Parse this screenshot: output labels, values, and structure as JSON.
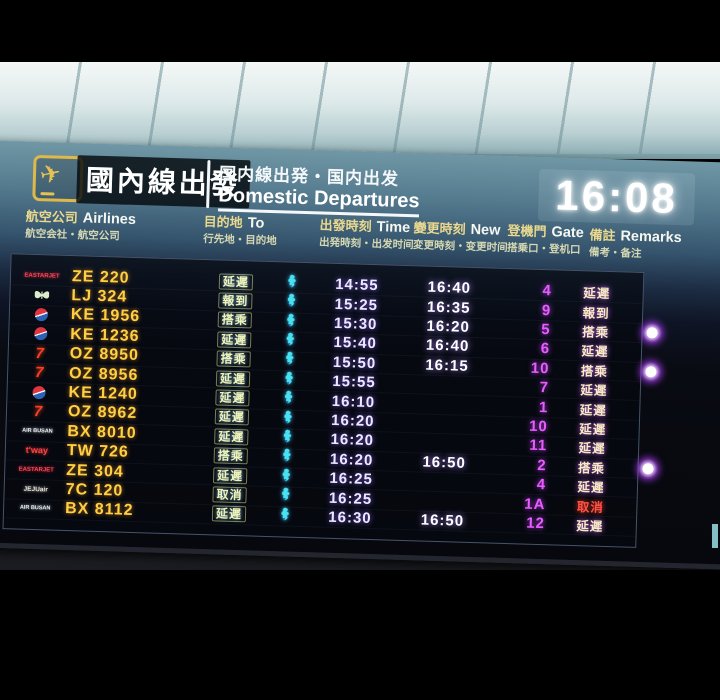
{
  "header": {
    "title_tc": "國內線出發",
    "subtitle_cjk": "国内線出発・国内出发",
    "subtitle_en": "Domestic Departures",
    "clock": "16:08",
    "plane_icon": "departure-plane-icon"
  },
  "columns": [
    {
      "zh": "航空公司",
      "en": "Airlines",
      "sub": "航空会社・航空公司"
    },
    {
      "zh": "目的地",
      "en": "To",
      "sub": "行先地・目的地"
    },
    {
      "zh": "出發時刻",
      "en": "Time",
      "sub": "出発時刻・出发时间"
    },
    {
      "zh": "變更時刻",
      "en": "New",
      "sub": "変更時刻・变更时间"
    },
    {
      "zh": "登機門",
      "en": "Gate",
      "sub": "搭乗口・登机口"
    },
    {
      "zh": "備註",
      "en": "Remarks",
      "sub": "備考・备注"
    }
  ],
  "flights": [
    {
      "logo": "eastar-jet",
      "logo_text": "EASTARJET",
      "flight": "ZE 220",
      "status": "延遲",
      "time": "14:55",
      "new": "16:40",
      "gate": "4",
      "remark": "延遲",
      "boarding_dot": false,
      "cancelled": false
    },
    {
      "logo": "jin-air",
      "logo_text": "",
      "flight": "LJ 324",
      "status": "報到",
      "time": "15:25",
      "new": "16:35",
      "gate": "9",
      "remark": "報到",
      "boarding_dot": false,
      "cancelled": false
    },
    {
      "logo": "korean-air",
      "logo_text": "",
      "flight": "KE 1956",
      "status": "搭乘",
      "time": "15:30",
      "new": "16:20",
      "gate": "5",
      "remark": "搭乘",
      "boarding_dot": true,
      "cancelled": false
    },
    {
      "logo": "korean-air",
      "logo_text": "",
      "flight": "KE 1236",
      "status": "延遲",
      "time": "15:40",
      "new": "16:40",
      "gate": "6",
      "remark": "延遲",
      "boarding_dot": false,
      "cancelled": false
    },
    {
      "logo": "asiana",
      "logo_text": "7",
      "flight": "OZ 8950",
      "status": "搭乘",
      "time": "15:50",
      "new": "16:15",
      "gate": "10",
      "remark": "搭乘",
      "boarding_dot": true,
      "cancelled": false
    },
    {
      "logo": "asiana",
      "logo_text": "7",
      "flight": "OZ 8956",
      "status": "延遲",
      "time": "15:55",
      "new": "",
      "gate": "7",
      "remark": "延遲",
      "boarding_dot": false,
      "cancelled": false
    },
    {
      "logo": "korean-air",
      "logo_text": "",
      "flight": "KE 1240",
      "status": "延遲",
      "time": "16:10",
      "new": "",
      "gate": "1",
      "remark": "延遲",
      "boarding_dot": false,
      "cancelled": false
    },
    {
      "logo": "asiana",
      "logo_text": "7",
      "flight": "OZ 8962",
      "status": "延遲",
      "time": "16:20",
      "new": "",
      "gate": "10",
      "remark": "延遲",
      "boarding_dot": false,
      "cancelled": false
    },
    {
      "logo": "air-busan",
      "logo_text": "AIR BUSAN",
      "flight": "BX 8010",
      "status": "延遲",
      "time": "16:20",
      "new": "",
      "gate": "11",
      "remark": "延遲",
      "boarding_dot": false,
      "cancelled": false
    },
    {
      "logo": "tway",
      "logo_text": "t'way",
      "flight": "TW 726",
      "status": "搭乘",
      "time": "16:20",
      "new": "16:50",
      "gate": "2",
      "remark": "搭乘",
      "boarding_dot": true,
      "cancelled": false
    },
    {
      "logo": "eastar-jet",
      "logo_text": "EASTARJET",
      "flight": "ZE 304",
      "status": "延遲",
      "time": "16:25",
      "new": "",
      "gate": "4",
      "remark": "延遲",
      "boarding_dot": false,
      "cancelled": false
    },
    {
      "logo": "jeju-air",
      "logo_text": "JEJUair",
      "flight": "7C 120",
      "status": "取消",
      "time": "16:25",
      "new": "",
      "gate": "1A",
      "remark": "取消",
      "boarding_dot": false,
      "cancelled": true
    },
    {
      "logo": "air-busan",
      "logo_text": "AIR BUSAN",
      "flight": "BX 8112",
      "status": "延遲",
      "time": "16:30",
      "new": "16:50",
      "gate": "12",
      "remark": "延遲",
      "boarding_dot": false,
      "cancelled": false
    }
  ],
  "colors": {
    "flight_number": "#ffd042",
    "status_text": "#f2f3b6",
    "time_text": "#efe9ff",
    "gate_text": "#e95cff",
    "remark_text": "#f5ecc0",
    "cancel_text": "#ff5244",
    "destination_icon": "#49e0f0",
    "header_yellow": "#e9d88d"
  }
}
